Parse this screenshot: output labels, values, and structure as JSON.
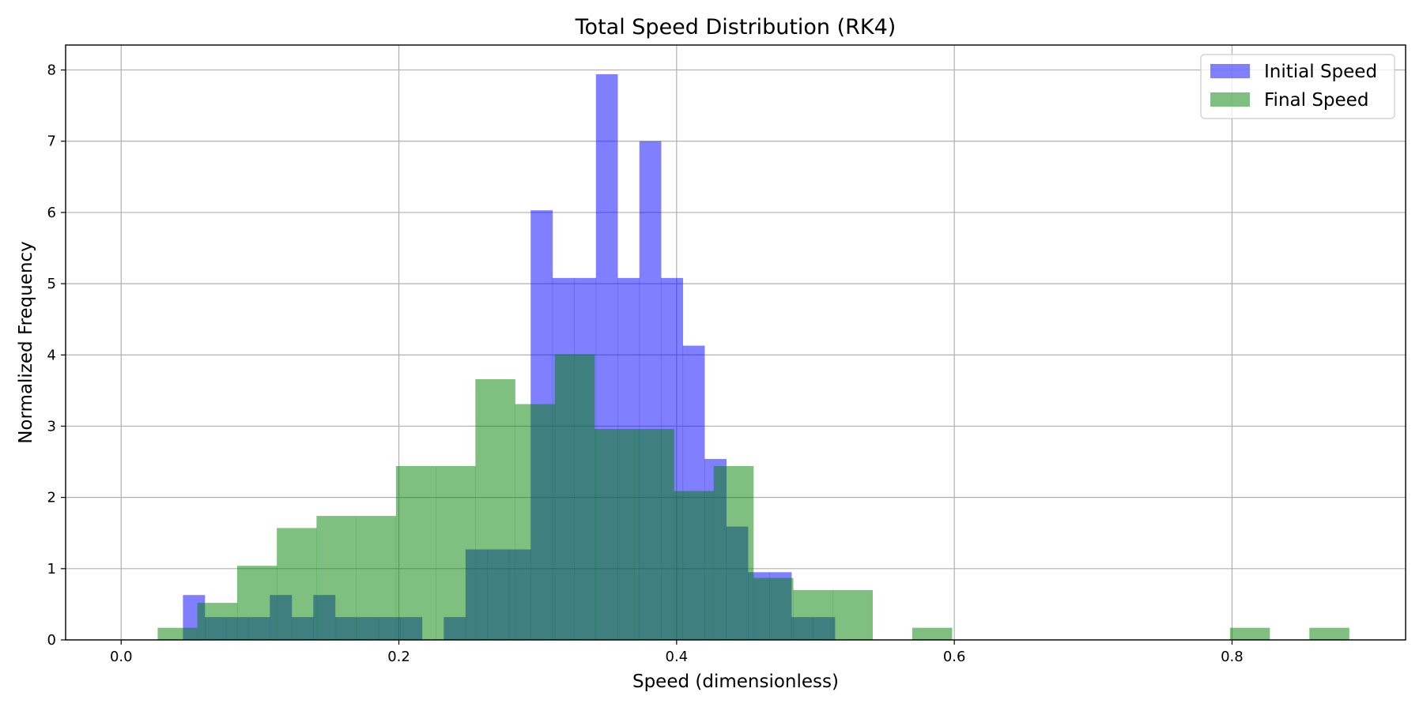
{
  "chart_data": {
    "type": "bar",
    "title": "Total Speed Distribution (RK4)",
    "xlabel": "Speed (dimensionless)",
    "ylabel": "Normalized Frequency",
    "xlim": [
      -0.04,
      0.925
    ],
    "ylim": [
      0,
      8.35
    ],
    "xticks": [
      0.0,
      0.2,
      0.4,
      0.6,
      0.8
    ],
    "xtick_labels": [
      "0.0",
      "0.2",
      "0.4",
      "0.6",
      "0.8"
    ],
    "yticks": [
      0,
      1,
      2,
      3,
      4,
      5,
      6,
      7,
      8
    ],
    "ytick_labels": [
      "0",
      "1",
      "2",
      "3",
      "4",
      "5",
      "6",
      "7",
      "8"
    ],
    "grid": true,
    "legend_position": "top-right",
    "series": [
      {
        "name": "Initial Speed",
        "color": "#0000ff",
        "alpha": 0.5,
        "bin_edges": [
          0.0445,
          0.0602,
          0.0758,
          0.0915,
          0.1071,
          0.1228,
          0.1384,
          0.1541,
          0.1697,
          0.1854,
          0.201,
          0.2167,
          0.2323,
          0.248,
          0.2636,
          0.2793,
          0.2949,
          0.3106,
          0.3262,
          0.3419,
          0.3575,
          0.3732,
          0.3888,
          0.4045,
          0.4201,
          0.4358,
          0.4514,
          0.4671,
          0.4827,
          0.4984,
          0.514,
          0.5297
        ],
        "values": [
          0.63,
          0.32,
          0.32,
          0.32,
          0.63,
          0.32,
          0.63,
          0.32,
          0.32,
          0.32,
          0.32,
          0.0,
          0.32,
          1.27,
          1.27,
          1.27,
          6.03,
          5.08,
          5.08,
          7.94,
          5.08,
          7.0,
          5.08,
          4.13,
          2.54,
          1.59,
          0.95,
          0.95,
          0.32,
          0.32,
          0.0
        ]
      },
      {
        "name": "Final Speed",
        "color": "#008000",
        "alpha": 0.5,
        "bin_edges": [
          0.0263,
          0.0549,
          0.0835,
          0.1121,
          0.1407,
          0.1693,
          0.1979,
          0.2265,
          0.2551,
          0.2837,
          0.3123,
          0.3409,
          0.3695,
          0.3981,
          0.4267,
          0.4553,
          0.4839,
          0.5125,
          0.5411,
          0.5697,
          0.5983,
          0.6269,
          0.6555,
          0.6841,
          0.7127,
          0.7413,
          0.7699,
          0.7985,
          0.8271,
          0.8557,
          0.8843
        ],
        "values": [
          0.17,
          0.52,
          1.04,
          1.57,
          1.74,
          1.74,
          2.44,
          2.44,
          3.66,
          3.31,
          4.01,
          2.96,
          2.96,
          2.09,
          2.44,
          0.87,
          0.7,
          0.7,
          0.0,
          0.17,
          0.0,
          0.0,
          0.0,
          0.0,
          0.0,
          0.0,
          0.0,
          0.17,
          0.0,
          0.17
        ]
      }
    ]
  }
}
